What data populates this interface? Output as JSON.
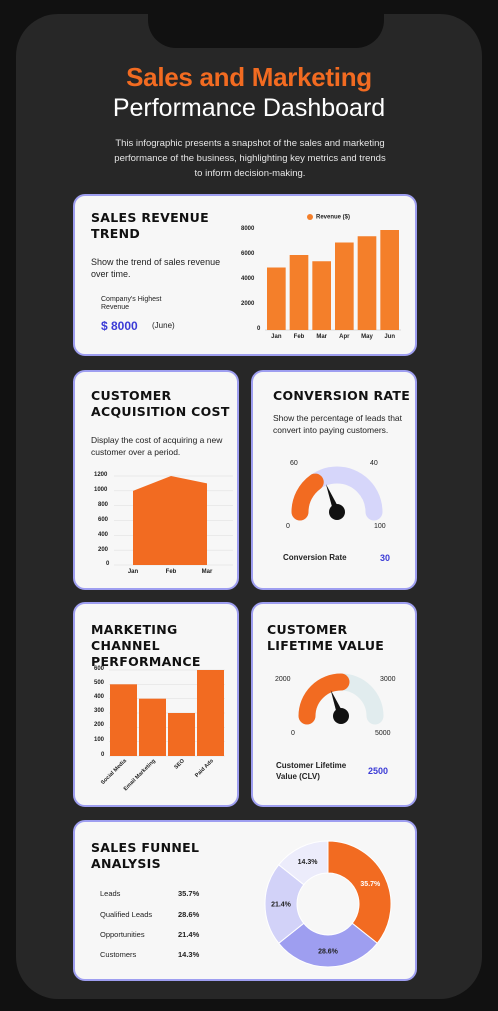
{
  "header": {
    "title_line1": "Sales and Marketing",
    "title_line2": "Performance Dashboard",
    "intro": "This infographic presents a snapshot of the sales and marketing performance of the business, highlighting key metrics and trends to inform decision-making."
  },
  "colors": {
    "accent": "#f26b21",
    "bar": "#f47f2a",
    "lavender": "#9e9ef0",
    "blue": "#3b3bd6"
  },
  "revenue": {
    "title": "SALES REVENUE TREND",
    "description": "Show the trend of sales revenue over time.",
    "highest_label": "Company's Highest Revenue",
    "highest_value": "$ 8000",
    "highest_month": "(June)",
    "legend": "Revenue ($)",
    "y_ticks": [
      "8000",
      "6000",
      "4000",
      "2000",
      "0"
    ]
  },
  "cac": {
    "title": "CUSTOMER ACQUISITION COST",
    "description": "Display the cost of acquiring a new customer over a period.",
    "y_ticks": [
      "1200",
      "1000",
      "800",
      "600",
      "400",
      "200",
      "0"
    ]
  },
  "conversion": {
    "title": "CONVERSION RATE",
    "description": "Show the percentage of leads that convert into paying customers.",
    "gauge_labels": {
      "left": "60",
      "right": "40",
      "min": "0",
      "max": "100"
    },
    "value_label": "Conversion Rate",
    "value": "30",
    "level": 0.3
  },
  "marketing": {
    "title": "MARKETING CHANNEL PERFORMANCE",
    "y_ticks": [
      "600",
      "500",
      "400",
      "300",
      "200",
      "100",
      "0"
    ]
  },
  "clv": {
    "title": "CUSTOMER LIFETIME VALUE",
    "gauge_labels": {
      "left": "2000",
      "right": "3000",
      "min": "0",
      "max": "5000"
    },
    "value_label": "Customer Lifetime Value (CLV)",
    "value": "2500",
    "level": 0.5
  },
  "funnel": {
    "title": "SALES FUNNEL ANALYSIS",
    "rows": [
      {
        "label": "Leads",
        "value": "35.7%"
      },
      {
        "label": "Qualified Leads",
        "value": "28.6%"
      },
      {
        "label": "Opportunities",
        "value": "21.4%"
      },
      {
        "label": "Customers",
        "value": "14.3%"
      }
    ]
  },
  "chart_data": [
    {
      "type": "bar",
      "title": "SALES REVENUE TREND",
      "categories": [
        "Jan",
        "Feb",
        "Mar",
        "Apr",
        "May",
        "Jun"
      ],
      "series": [
        {
          "name": "Revenue ($)",
          "values": [
            5000,
            6000,
            5500,
            7000,
            7500,
            8000
          ]
        }
      ],
      "ylim": [
        0,
        8000
      ],
      "legend": "top"
    },
    {
      "type": "area",
      "title": "CUSTOMER ACQUISITION COST",
      "categories": [
        "Jan",
        "Feb",
        "Mar"
      ],
      "values": [
        1000,
        1200,
        1100
      ],
      "ylim": [
        0,
        1200
      ]
    },
    {
      "type": "bar",
      "title": "MARKETING CHANNEL PERFORMANCE",
      "categories": [
        "Social Media",
        "Email Marketing",
        "SEO",
        "Paid Ads"
      ],
      "values": [
        500,
        400,
        300,
        600
      ],
      "ylim": [
        0,
        600
      ]
    },
    {
      "type": "pie",
      "title": "SALES FUNNEL ANALYSIS",
      "categories": [
        "Leads",
        "Qualified Leads",
        "Opportunities",
        "Customers"
      ],
      "values": [
        35.7,
        28.6,
        21.4,
        14.3
      ],
      "colors": [
        "#f26b21",
        "#9e9ef0",
        "#d2d2f8",
        "#ececfb"
      ]
    }
  ]
}
